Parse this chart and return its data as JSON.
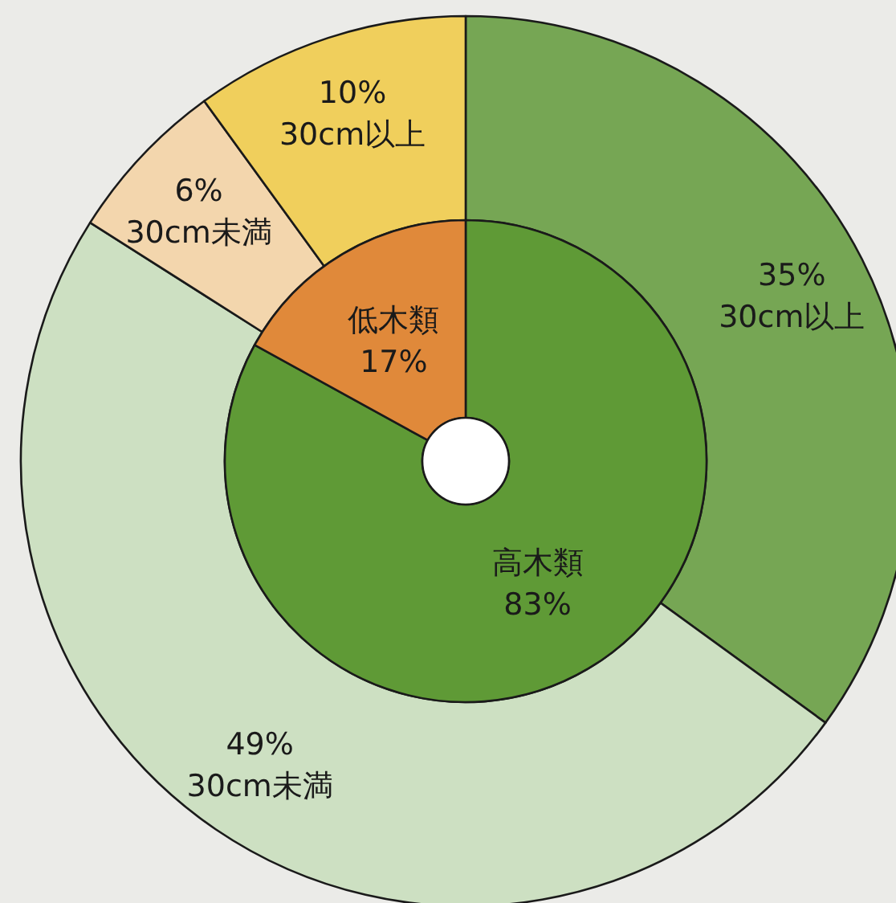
{
  "chart_data": [
    {
      "type": "donut",
      "categories": [
        "高木類",
        "低木類"
      ],
      "values": [
        83,
        17
      ],
      "colors": [
        "#5f9a36",
        "#e0893a"
      ],
      "value_labels": [
        "83%",
        "17%"
      ]
    },
    {
      "type": "donut",
      "categories": [
        "30cm以上",
        "30cm未満",
        "30cm未満",
        "30cm以上"
      ],
      "values": [
        35,
        49,
        6,
        10
      ],
      "colors": [
        "#76a654",
        "#cde0c2",
        "#f3d6ad",
        "#f0cf5c"
      ],
      "value_labels": [
        "35%",
        "49%",
        "6%",
        "10%"
      ]
    }
  ]
}
